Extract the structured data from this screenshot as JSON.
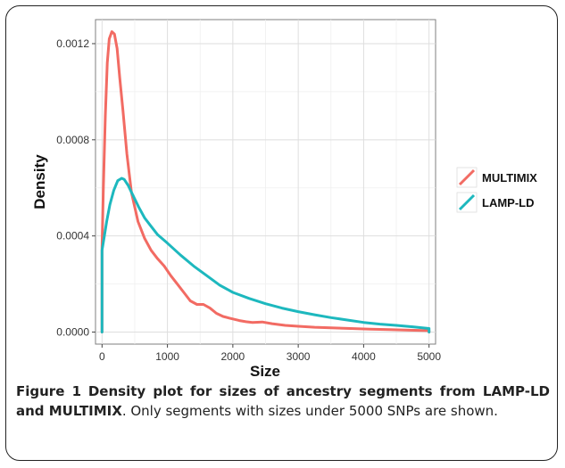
{
  "chart_data": {
    "type": "line",
    "title": "",
    "xlabel": "Size",
    "ylabel": "Density",
    "xlim": [
      -100,
      5100
    ],
    "ylim": [
      -5e-05,
      0.0013
    ],
    "x_ticks": [
      "0",
      "1000",
      "2000",
      "3000",
      "4000",
      "5000"
    ],
    "y_ticks": [
      "0.0000",
      "0.0004",
      "0.0008",
      "0.0012"
    ],
    "grid": true,
    "legend_position": "right",
    "series": [
      {
        "name": "MULTIMIX",
        "color": "#F26B63",
        "x": [
          0,
          0,
          20,
          50,
          80,
          110,
          150,
          190,
          230,
          270,
          320,
          380,
          450,
          550,
          650,
          750,
          850,
          950,
          1050,
          1150,
          1250,
          1350,
          1450,
          1550,
          1650,
          1750,
          1850,
          1950,
          2100,
          2200,
          2300,
          2450,
          2600,
          2800,
          3000,
          3250,
          3500,
          3800,
          4100,
          4400,
          4700,
          5000,
          5000
        ],
        "y": [
          0.0,
          0.00035,
          0.0006,
          0.0009,
          0.00112,
          0.00122,
          0.00125,
          0.00124,
          0.00118,
          0.00106,
          0.00092,
          0.00074,
          0.00058,
          0.00046,
          0.00039,
          0.00034,
          0.000305,
          0.000275,
          0.000235,
          0.0002,
          0.000165,
          0.00013,
          0.000115,
          0.000115,
          0.0001,
          7.8e-05,
          6.5e-05,
          5.8e-05,
          4.8e-05,
          4.3e-05,
          4e-05,
          4.2e-05,
          3.5e-05,
          2.8e-05,
          2.4e-05,
          2e-05,
          1.8e-05,
          1.5e-05,
          1.2e-05,
          1e-05,
          8e-06,
          6e-06,
          0.0
        ]
      },
      {
        "name": "LAMP-LD",
        "color": "#1DB8BE",
        "x": [
          0,
          0,
          30,
          70,
          120,
          180,
          240,
          300,
          340,
          400,
          470,
          560,
          650,
          750,
          850,
          1000,
          1200,
          1400,
          1600,
          1800,
          2000,
          2250,
          2500,
          2750,
          3000,
          3250,
          3500,
          3750,
          4000,
          4250,
          4500,
          4750,
          5000,
          5000
        ],
        "y": [
          0.0,
          0.00034,
          0.00039,
          0.00046,
          0.00053,
          0.00059,
          0.00063,
          0.00064,
          0.000635,
          0.00061,
          0.00057,
          0.00052,
          0.000475,
          0.00044,
          0.000405,
          0.00037,
          0.00032,
          0.000275,
          0.000235,
          0.000195,
          0.000165,
          0.00014,
          0.000118,
          0.0001,
          8.5e-05,
          7.2e-05,
          6e-05,
          5e-05,
          4e-05,
          3.3e-05,
          2.8e-05,
          2.2e-05,
          1.5e-05,
          0.0
        ]
      }
    ]
  },
  "caption": {
    "label": "Figure 1",
    "title": "Density plot for sizes of ancestry segments from LAMP-LD and MULTIMIX",
    "text": ". Only segments with sizes under 5000 SNPs are shown."
  }
}
